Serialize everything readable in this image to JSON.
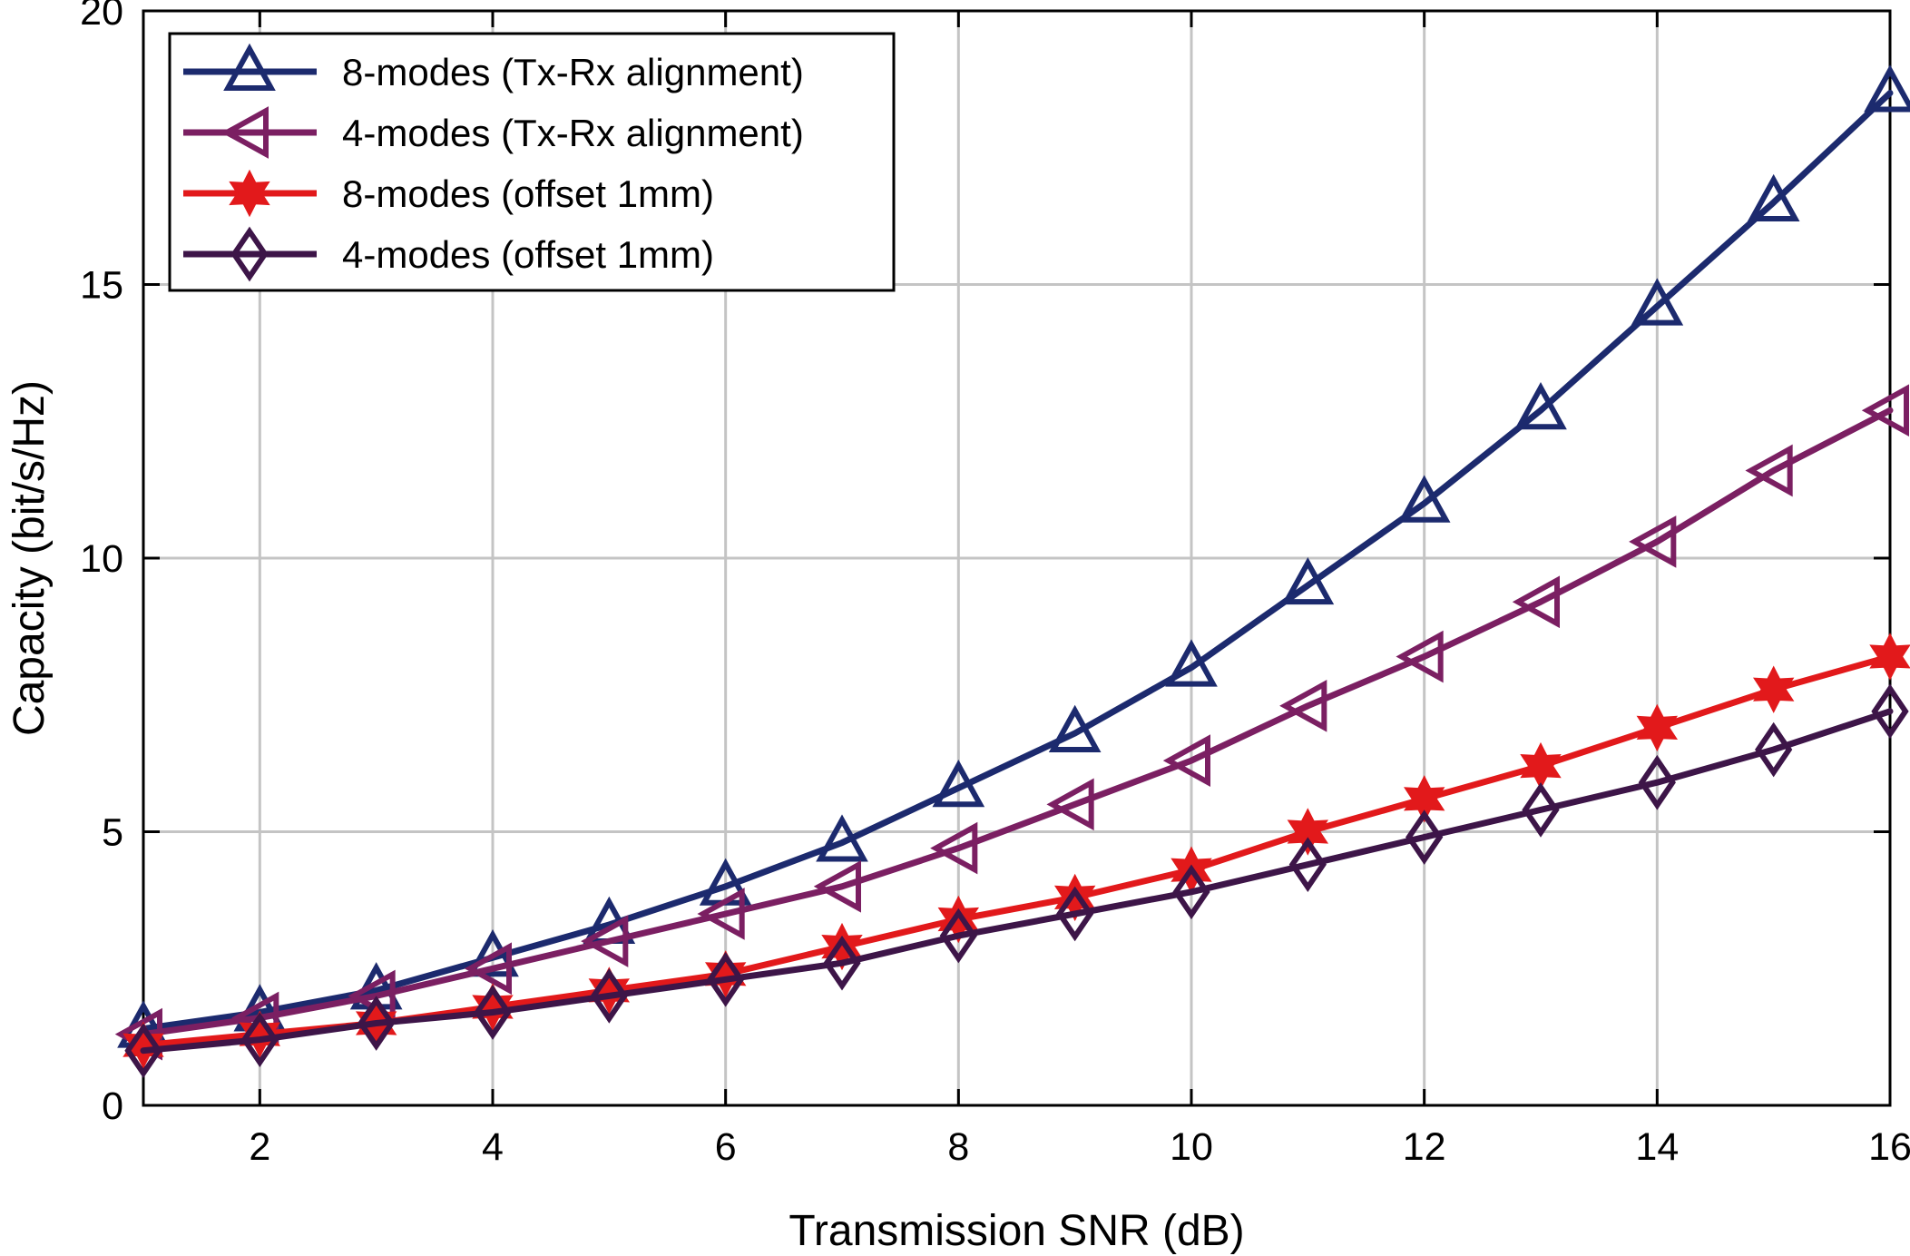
{
  "chart_data": {
    "type": "line",
    "title": "",
    "xlabel": "Transmission SNR (dB)",
    "ylabel": "Capacity (bit/s/Hz)",
    "xlim": [
      1,
      16
    ],
    "ylim": [
      0,
      20
    ],
    "xticks": [
      2,
      4,
      6,
      8,
      10,
      12,
      14,
      16
    ],
    "yticks": [
      0,
      5,
      10,
      15,
      20
    ],
    "grid": true,
    "legend_position": "top-left",
    "x": [
      1,
      2,
      3,
      4,
      5,
      6,
      7,
      8,
      9,
      10,
      11,
      12,
      13,
      14,
      15,
      16
    ],
    "series": [
      {
        "name": "8-modes (Tx-Rx alignment)",
        "color": "#1c2a6e",
        "marker": "triangle-up",
        "values": [
          1.4,
          1.7,
          2.1,
          2.7,
          3.3,
          4.0,
          4.8,
          5.8,
          6.8,
          8.0,
          9.5,
          11.0,
          12.7,
          14.6,
          16.5,
          18.5
        ]
      },
      {
        "name": "4-modes (Tx-Rx alignment)",
        "color": "#7b1f62",
        "marker": "triangle-left",
        "values": [
          1.3,
          1.6,
          2.0,
          2.5,
          3.0,
          3.5,
          4.0,
          4.7,
          5.5,
          6.3,
          7.3,
          8.2,
          9.2,
          10.3,
          11.6,
          12.7
        ]
      },
      {
        "name": "8-modes (offset 1mm)",
        "color": "#e2191b",
        "marker": "hexagram",
        "values": [
          1.1,
          1.3,
          1.5,
          1.8,
          2.1,
          2.4,
          2.9,
          3.4,
          3.8,
          4.3,
          5.0,
          5.6,
          6.2,
          6.9,
          7.6,
          8.2
        ]
      },
      {
        "name": "4-modes (offset 1mm)",
        "color": "#3d1548",
        "marker": "diamond",
        "values": [
          1.0,
          1.2,
          1.5,
          1.7,
          2.0,
          2.3,
          2.6,
          3.1,
          3.5,
          3.9,
          4.4,
          4.9,
          5.4,
          5.9,
          6.5,
          7.2
        ]
      }
    ]
  }
}
